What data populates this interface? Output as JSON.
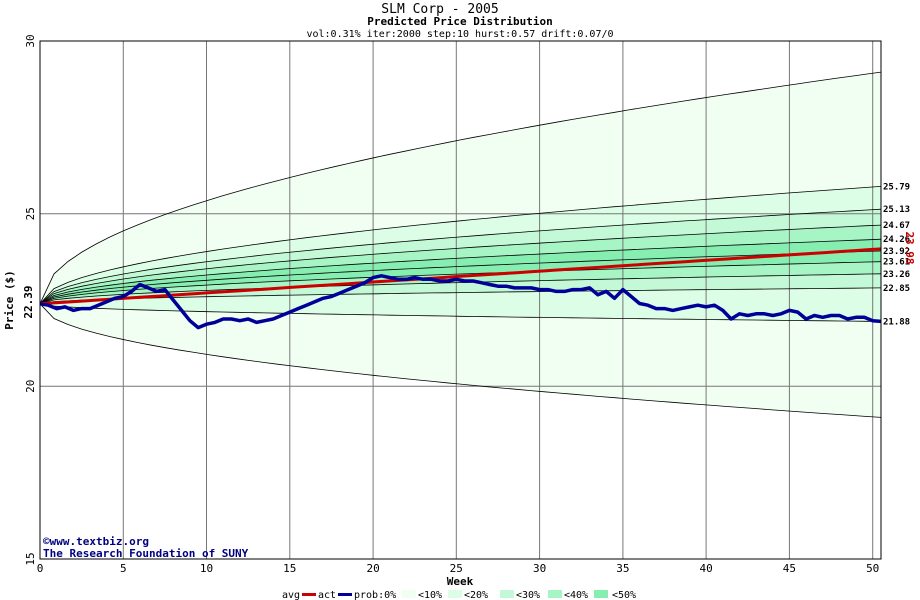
{
  "title": "SLM Corp - 2005",
  "subtitle": "Predicted Price Distribution",
  "params": "vol:0.31% iter:2000 step:10 hurst:0.57 drift:0.07/0",
  "watermark": {
    "line1": "©www.textbiz.org",
    "line2": "The Research Foundation of SUNY"
  },
  "chart_data": {
    "type": "line",
    "xlabel": "Week",
    "ylabel": "Price ($)",
    "xlim": [
      0,
      50.5
    ],
    "ylim": [
      15,
      30
    ],
    "x_ticks": [
      0,
      5,
      10,
      15,
      20,
      25,
      30,
      35,
      40,
      45,
      50
    ],
    "y_ticks": [
      15,
      20,
      25,
      30
    ],
    "start_price_label": "22.39",
    "end_avg_label": "23.98",
    "grid": true,
    "band_fill_colors": [
      "#f0fff2",
      "#dcfde6",
      "#c3f9d6",
      "#a7f4c4",
      "#86eeb0"
    ],
    "band_legend": [
      "prob:0%",
      "<10%",
      "<20%",
      "<30%",
      "<40%",
      "<50%"
    ],
    "distribution_lines": [
      {
        "label": "",
        "end": 29.1
      },
      {
        "label": "25.79",
        "end": 25.79
      },
      {
        "label": "25.13",
        "end": 25.13
      },
      {
        "label": "24.67",
        "end": 24.67
      },
      {
        "label": "24.26",
        "end": 24.26
      },
      {
        "label": "23.92",
        "end": 23.92
      },
      {
        "label": "23.61",
        "end": 23.61
      },
      {
        "label": "23.26",
        "end": 23.26
      },
      {
        "label": "22.85",
        "end": 22.85
      },
      {
        "label": "21.88",
        "end": 21.88
      },
      {
        "label": "",
        "end": 19.1
      }
    ],
    "series": [
      {
        "name": "avg",
        "color": "#cc0000",
        "x": [
          0,
          50.5
        ],
        "values": [
          22.39,
          23.98
        ]
      },
      {
        "name": "act",
        "color": "#000099",
        "x": [
          0,
          0.5,
          1,
          1.5,
          2,
          2.5,
          3,
          3.5,
          4,
          4.5,
          5,
          5.5,
          6,
          6.5,
          7,
          7.5,
          8,
          8.5,
          9,
          9.5,
          10,
          10.5,
          11,
          11.5,
          12,
          12.5,
          13,
          13.5,
          14,
          14.5,
          15,
          15.5,
          16,
          16.5,
          17,
          17.5,
          18,
          18.5,
          19,
          19.5,
          20,
          20.5,
          21,
          21.5,
          22,
          22.5,
          23,
          23.5,
          24,
          24.5,
          25,
          25.5,
          26,
          26.5,
          27,
          27.5,
          28,
          28.5,
          29,
          29.5,
          30,
          30.5,
          31,
          31.5,
          32,
          32.5,
          33,
          33.5,
          34,
          34.5,
          35,
          35.5,
          36,
          36.5,
          37,
          37.5,
          38,
          38.5,
          39,
          39.5,
          40,
          40.5,
          41,
          41.5,
          42,
          42.5,
          43,
          43.5,
          44,
          44.5,
          45,
          45.5,
          46,
          46.5,
          47,
          47.5,
          48,
          48.5,
          49,
          49.5,
          50,
          50.5
        ],
        "values": [
          22.39,
          22.35,
          22.25,
          22.3,
          22.2,
          22.25,
          22.25,
          22.35,
          22.45,
          22.55,
          22.6,
          22.75,
          22.95,
          22.85,
          22.75,
          22.8,
          22.5,
          22.2,
          21.9,
          21.7,
          21.8,
          21.85,
          21.95,
          21.95,
          21.9,
          21.95,
          21.85,
          21.9,
          21.95,
          22.05,
          22.15,
          22.25,
          22.35,
          22.45,
          22.55,
          22.6,
          22.7,
          22.8,
          22.9,
          23.0,
          23.15,
          23.2,
          23.15,
          23.1,
          23.1,
          23.15,
          23.1,
          23.1,
          23.05,
          23.05,
          23.1,
          23.05,
          23.05,
          23.0,
          22.95,
          22.9,
          22.9,
          22.85,
          22.85,
          22.85,
          22.8,
          22.8,
          22.75,
          22.75,
          22.8,
          22.8,
          22.85,
          22.65,
          22.75,
          22.55,
          22.8,
          22.6,
          22.4,
          22.35,
          22.25,
          22.25,
          22.2,
          22.25,
          22.3,
          22.35,
          22.3,
          22.35,
          22.2,
          21.95,
          22.1,
          22.05,
          22.1,
          22.1,
          22.05,
          22.1,
          22.2,
          22.15,
          21.95,
          22.05,
          22.0,
          22.05,
          22.05,
          21.95,
          22.0,
          22.0,
          21.9,
          21.88
        ]
      }
    ]
  },
  "legend": {
    "avg": "avg",
    "act": "act",
    "prob0": "prob:0%",
    "p10": "<10%",
    "p20": "<20%",
    "p30": "<30%",
    "p40": "<40%",
    "p50": "<50%"
  }
}
